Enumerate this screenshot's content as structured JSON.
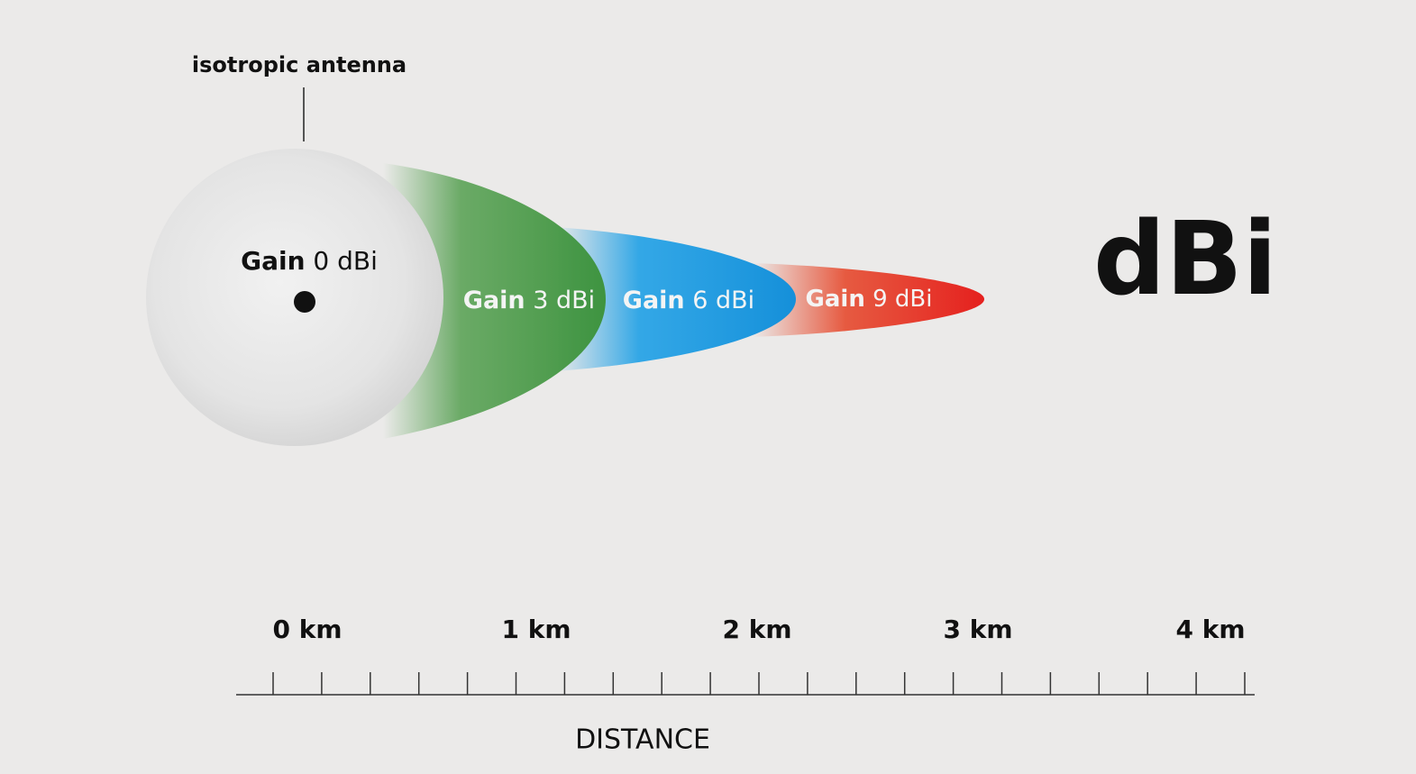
{
  "annotation": "isotropic antenna",
  "lobes": [
    {
      "gain": "Gain",
      "value": "0 dBi"
    },
    {
      "gain": "Gain",
      "value": "3 dBi"
    },
    {
      "gain": "Gain",
      "value": "6 dBi"
    },
    {
      "gain": "Gain",
      "value": "9 dBi"
    }
  ],
  "title": "dBi",
  "scale": {
    "labels": [
      "0 km",
      "1 km",
      "2 km",
      "3 km",
      "4 km"
    ],
    "axis_label": "DISTANCE"
  }
}
